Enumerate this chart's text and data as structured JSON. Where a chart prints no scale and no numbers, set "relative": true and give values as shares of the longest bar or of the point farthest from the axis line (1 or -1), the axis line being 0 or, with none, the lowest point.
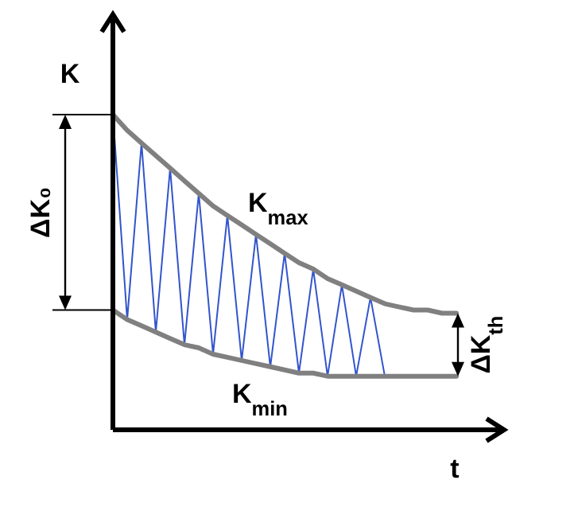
{
  "chart_data": {
    "type": "line",
    "relative": true,
    "xlabel": "t",
    "ylabel": "K",
    "marker": "none",
    "line_style": "solid",
    "categories": [
      null,
      null,
      null,
      null,
      null,
      null,
      null,
      null,
      null,
      null,
      null,
      null,
      null,
      null,
      null,
      null,
      null,
      null,
      null,
      null,
      null,
      null,
      null,
      null,
      null
    ],
    "series": [
      {
        "name": "K$_{max}$",
        "color": "#808080",
        "values": [
          1,
          0.95,
          0.91,
          0.87,
          0.83,
          0.79,
          0.75,
          0.71,
          0.68,
          0.65,
          0.62,
          0.59,
          0.56,
          0.53,
          0.51,
          0.48,
          0.46,
          0.44,
          0.42,
          0.4,
          0.39,
          0.38,
          0.38,
          0.37,
          0.37
        ]
      },
      {
        "name": "K$_{min}$",
        "color": "#808080",
        "values": [
          0.38,
          0.35,
          0.33,
          0.31,
          0.29,
          0.27,
          0.26,
          0.24,
          0.23,
          0.22,
          0.21,
          0.2,
          0.19,
          0.18,
          0.18,
          0.17,
          0.17,
          0.17,
          0.17,
          0.17,
          0.17,
          0.17,
          0.17,
          0.17,
          0.17
        ]
      },
      {
        "color": "#3355cc",
        "values": [
          1,
          0.35,
          0.91,
          0.31,
          0.83,
          0.27,
          0.75,
          0.24,
          0.68,
          0.22,
          0.62,
          0.2,
          0.56,
          0.18,
          0.51,
          0.17,
          0.46,
          0.17,
          0.42,
          0.17,
          null,
          null,
          null,
          null,
          null
        ]
      }
    ],
    "annotations": [
      "ΔK₀",
      "ΔK$_{th}$"
    ]
  }
}
